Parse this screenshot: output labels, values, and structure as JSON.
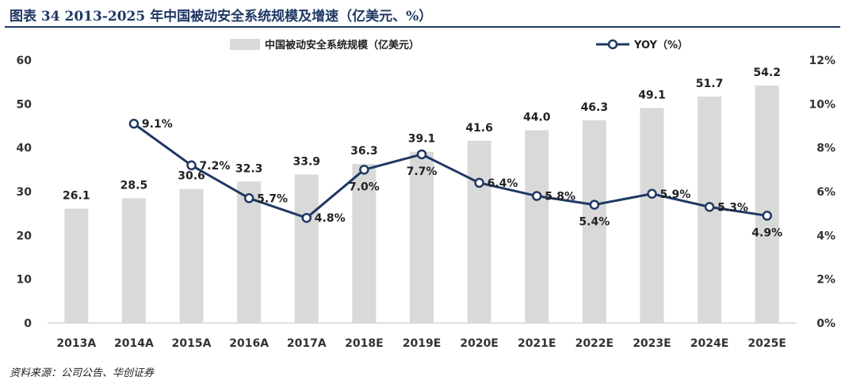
{
  "page": {
    "title": "图表 34 2013-2025 年中国被动安全系统规模及增速（亿美元、%）",
    "source": "资料来源：公司公告、华创证券"
  },
  "colors": {
    "bar": "#d9d9d9",
    "line": "#1f3864",
    "title": "#1f3864"
  },
  "chart_data": {
    "type": "bar",
    "categories": [
      "2013A",
      "2014A",
      "2015A",
      "2016A",
      "2017A",
      "2018E",
      "2019E",
      "2020E",
      "2021E",
      "2022E",
      "2023E",
      "2024E",
      "2025E"
    ],
    "series": [
      {
        "name": "中国被动安全系统规模（亿美元）",
        "type": "bar",
        "axis": "left",
        "values": [
          26.1,
          28.5,
          30.6,
          32.3,
          33.9,
          36.3,
          39.1,
          41.6,
          44.0,
          46.3,
          49.1,
          51.7,
          54.2
        ],
        "labels": [
          "26.1",
          "28.5",
          "30.6",
          "32.3",
          "33.9",
          "36.3",
          "39.1",
          "41.6",
          "44.0",
          "46.3",
          "49.1",
          "51.7",
          "54.2"
        ]
      },
      {
        "name": "YOY（%）",
        "type": "line",
        "axis": "right",
        "values": [
          null,
          9.1,
          7.2,
          5.7,
          4.8,
          7.0,
          7.7,
          6.4,
          5.8,
          5.4,
          5.9,
          5.3,
          4.9
        ],
        "labels": [
          "",
          "9.1%",
          "7.2%",
          "5.7%",
          "4.8%",
          "7.0%",
          "7.7%",
          "6.4%",
          "5.8%",
          "5.4%",
          "5.9%",
          "5.3%",
          "4.9%"
        ],
        "label_pos": [
          "",
          "right",
          "right",
          "right",
          "right",
          "below",
          "below",
          "right",
          "right",
          "below",
          "right",
          "right",
          "below"
        ]
      }
    ],
    "left_axis": {
      "ylim": [
        0,
        60
      ],
      "ticks": [
        "0",
        "10",
        "20",
        "30",
        "40",
        "50",
        "60"
      ]
    },
    "right_axis": {
      "ylim": [
        0,
        12
      ],
      "ticks": [
        "0%",
        "2%",
        "4%",
        "6%",
        "8%",
        "10%",
        "12%"
      ]
    },
    "legend": [
      "中国被动安全系统规模（亿美元）",
      "YOY（%）"
    ],
    "legend_position": "top-center",
    "grid": false
  }
}
